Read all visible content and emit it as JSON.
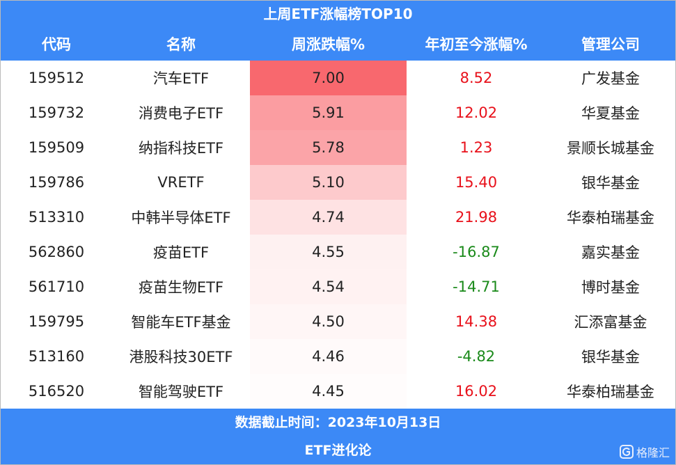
{
  "table": {
    "title": "上周ETF涨幅榜TOP10",
    "header": [
      "代码",
      "名称",
      "周涨跌幅%",
      "年初至今涨幅%",
      "管理公司"
    ],
    "rows": [
      [
        "159512",
        "汽车ETF",
        "7.00",
        "8.52",
        "广发基金"
      ],
      [
        "159732",
        "消费电子ETF",
        "5.91",
        "12.02",
        "华夏基金"
      ],
      [
        "159509",
        "纳指科技ETF",
        "5.78",
        "1.23",
        "景顺长城基金"
      ],
      [
        "159786",
        "VRETF",
        "5.10",
        "15.40",
        "银华基金"
      ],
      [
        "513310",
        "中韩半导体ETF",
        "4.74",
        "21.98",
        "华泰柏瑞基金"
      ],
      [
        "562860",
        "疫苗ETF",
        "4.55",
        "-16.87",
        "嘉实基金"
      ],
      [
        "561710",
        "疫苗生物ETF",
        "4.54",
        "-14.71",
        "博时基金"
      ],
      [
        "159795",
        "智能车ETF基金",
        "4.50",
        "14.38",
        "汇添富基金"
      ],
      [
        "513160",
        "港股科技30ETF",
        "4.46",
        "-4.82",
        "银华基金"
      ],
      [
        "516520",
        "智能驾驶ETF",
        "4.45",
        "16.02",
        "华泰柏瑞基金"
      ]
    ],
    "footer": [
      "数据截止时间：2023年10月13日",
      "ETF进化论"
    ],
    "watermark": "格隆汇"
  }
}
